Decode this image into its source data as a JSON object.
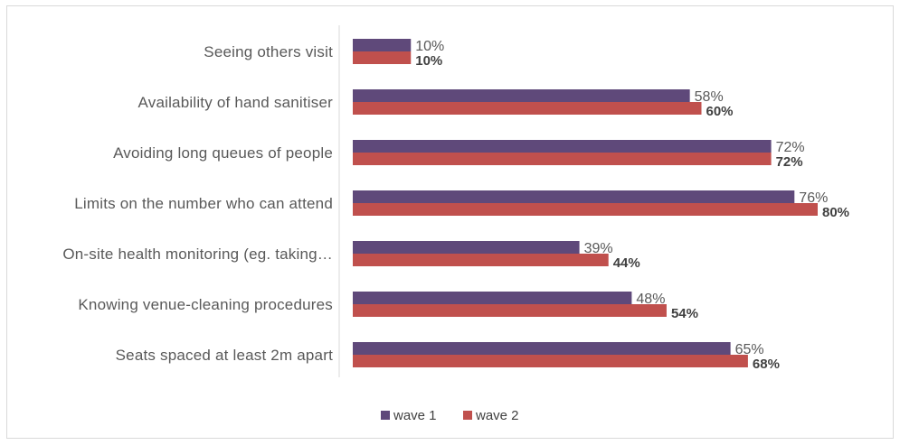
{
  "chart_data": {
    "type": "bar",
    "orientation": "horizontal",
    "categories": [
      "Seeing others visit",
      "Availability of hand sanitiser",
      "Avoiding long queues of people",
      "Limits on the number who can attend",
      "On-site health monitoring (eg. taking…",
      "Knowing venue-cleaning procedures",
      "Seats spaced at least 2m apart"
    ],
    "series": [
      {
        "name": "wave 1",
        "color": "#5f497a",
        "values": [
          10,
          58,
          72,
          76,
          39,
          48,
          65
        ],
        "labels": [
          "10%",
          "58%",
          "72%",
          "76%",
          "39%",
          "48%",
          "65%"
        ]
      },
      {
        "name": "wave 2",
        "color": "#c0504d",
        "values": [
          10,
          60,
          72,
          80,
          44,
          54,
          68
        ],
        "labels": [
          "10%",
          "60%",
          "72%",
          "80%",
          "44%",
          "54%",
          "68%"
        ]
      }
    ],
    "xlim": [
      0,
      100
    ],
    "grid": false,
    "legend": "bottom"
  }
}
